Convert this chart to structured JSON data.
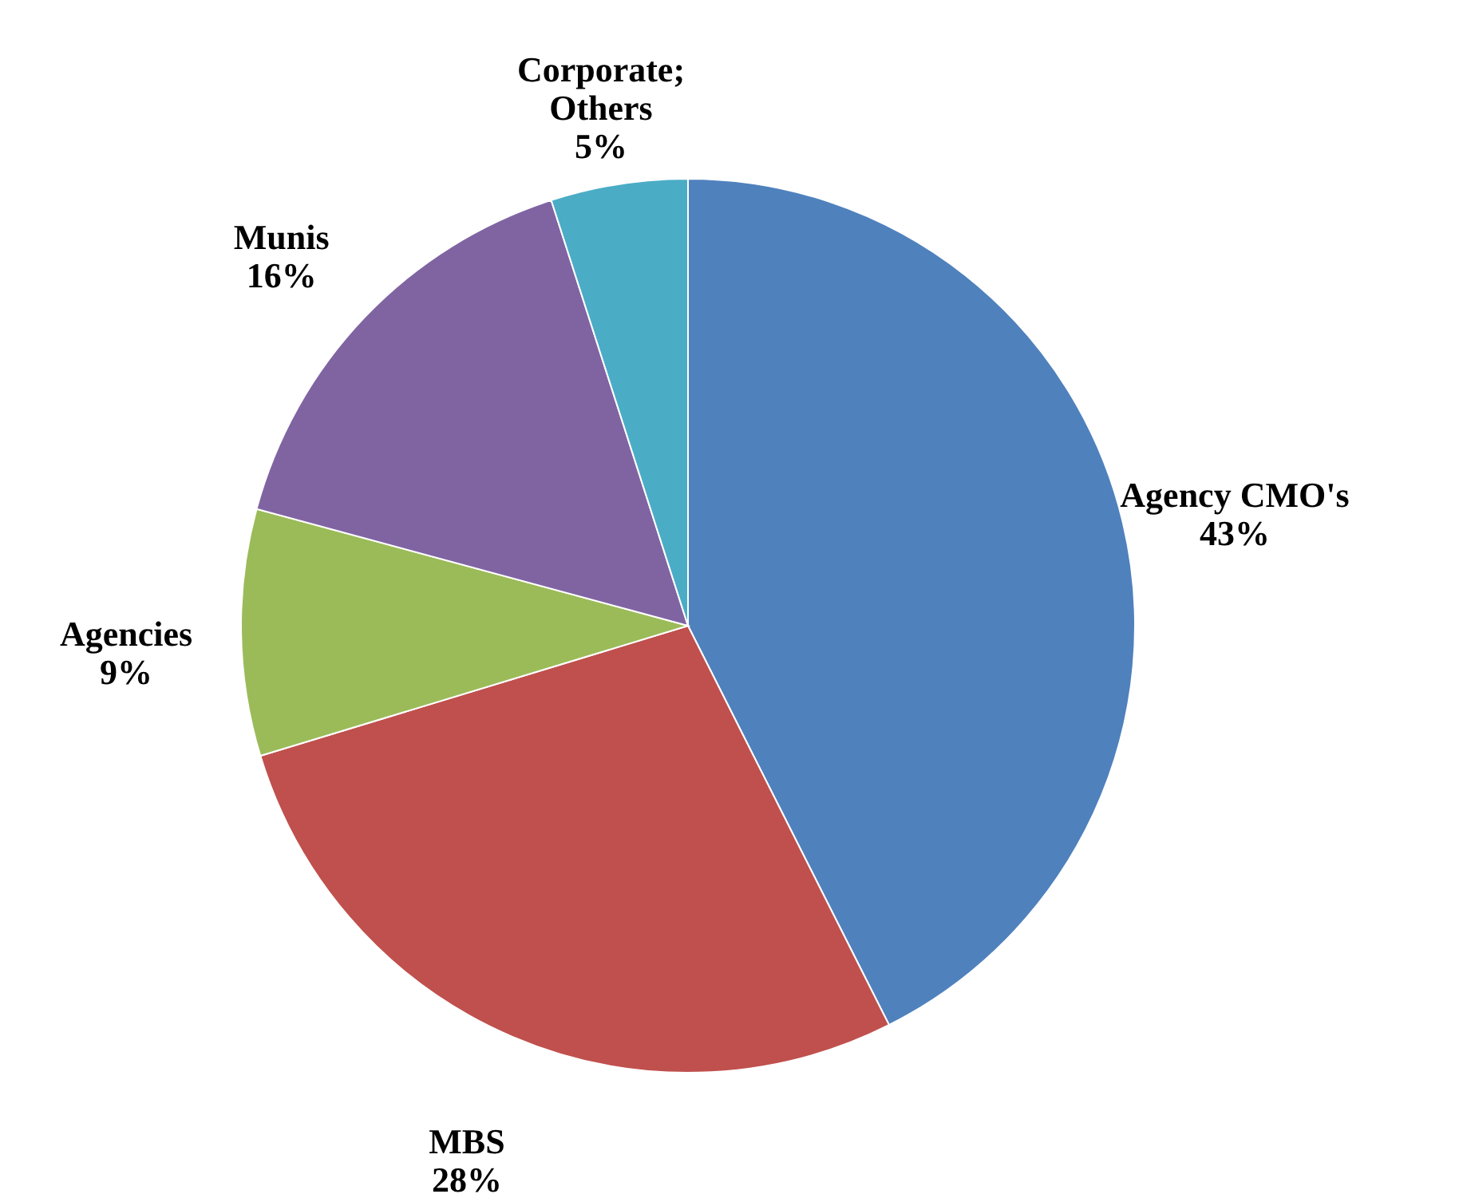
{
  "chart_data": {
    "type": "pie",
    "categories": [
      "Agency CMO's",
      "MBS",
      "Agencies",
      "Munis",
      "Corporate; Others"
    ],
    "values": [
      43,
      28,
      9,
      16,
      5
    ],
    "value_labels": [
      "43%",
      "28%",
      "9%",
      "16%",
      "5%"
    ],
    "colors": [
      "#4f81bd",
      "#c0504d",
      "#9bbb59",
      "#8064a2",
      "#4bacc6"
    ],
    "legend": false
  }
}
